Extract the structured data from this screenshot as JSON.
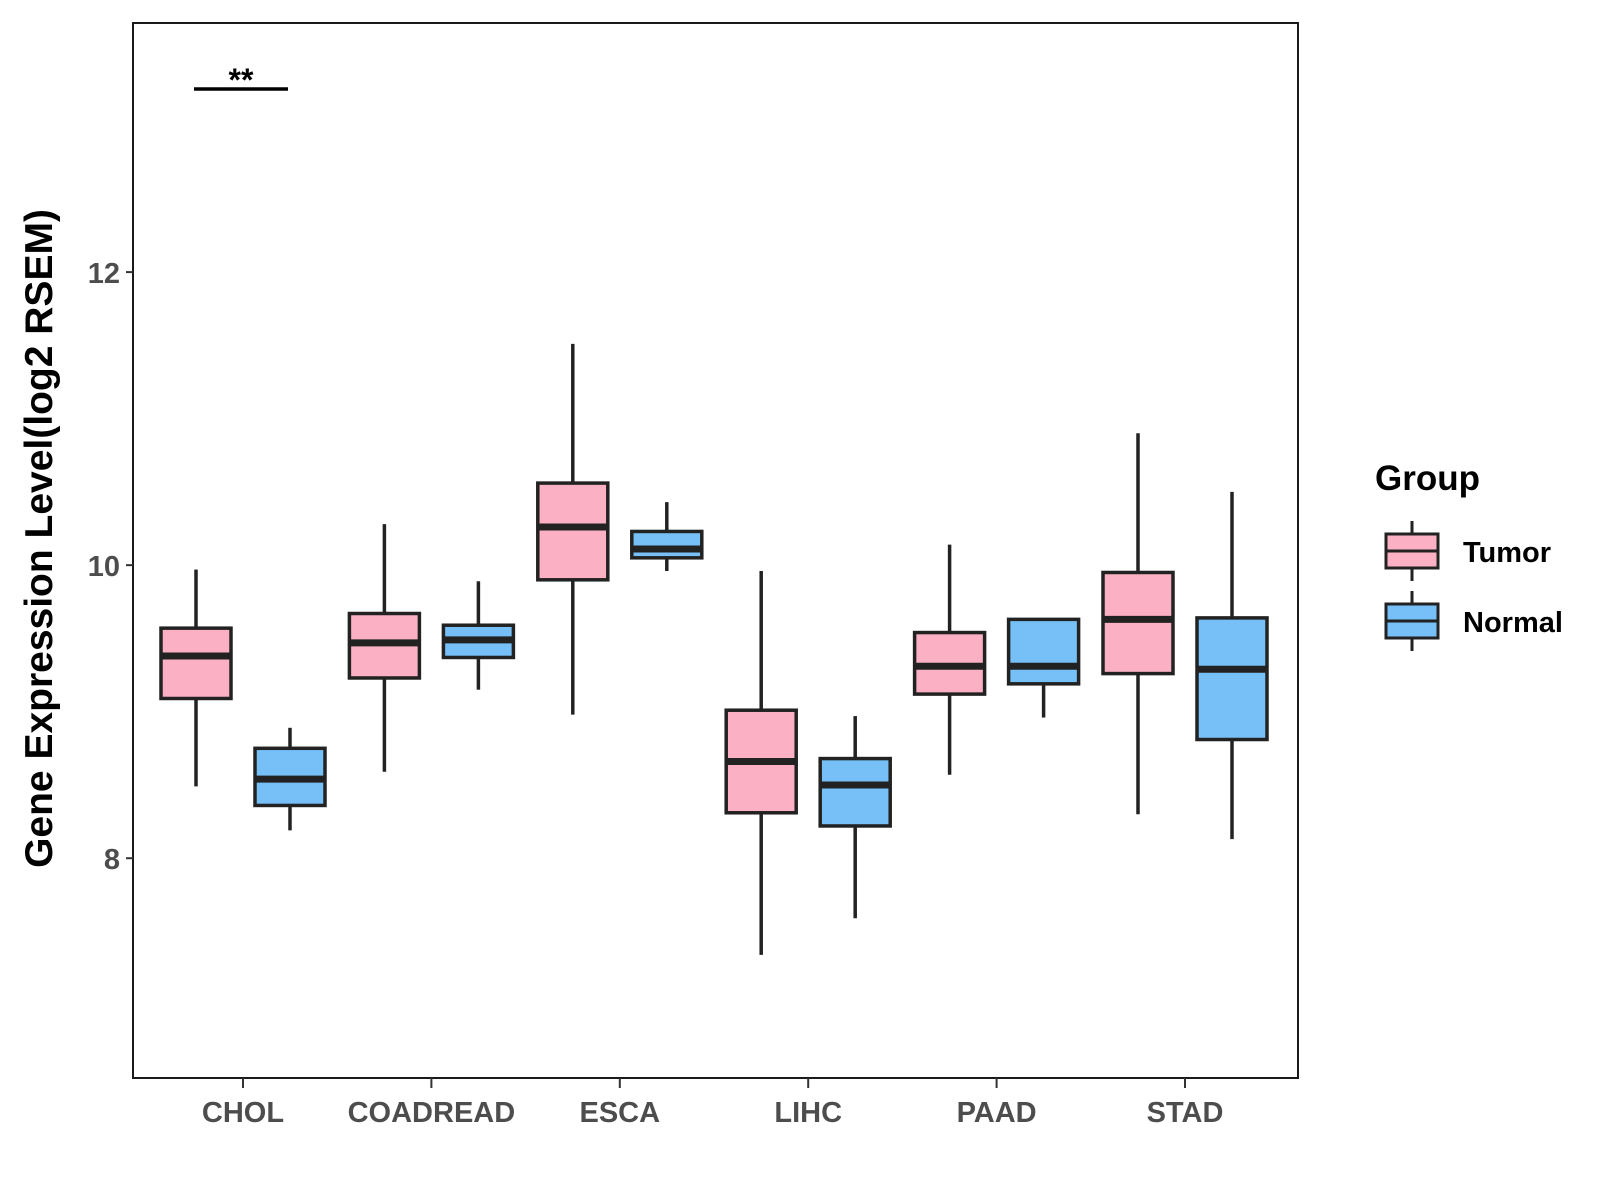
{
  "chart_data": {
    "type": "boxplot",
    "ylabel": "Gene Expression Level(log2 RSEM)",
    "xlabel": "",
    "ylim": [
      6.5,
      13.7
    ],
    "yticks": [
      8,
      10,
      12
    ],
    "categories": [
      "CHOL",
      "COADREAD",
      "ESCA",
      "LIHC",
      "PAAD",
      "STAD"
    ],
    "legend": {
      "title": "Group",
      "position": "right",
      "entries": [
        {
          "name": "Tumor",
          "color": "#fbb1c3"
        },
        {
          "name": "Normal",
          "color": "#76c0f7"
        }
      ]
    },
    "series": [
      {
        "name": "Tumor",
        "color": "#fbb1c3",
        "boxes": [
          {
            "min": 8.49,
            "q1": 9.09,
            "median": 9.38,
            "q3": 9.57,
            "max": 9.97
          },
          {
            "min": 8.59,
            "q1": 9.23,
            "median": 9.47,
            "q3": 9.67,
            "max": 10.28
          },
          {
            "min": 8.98,
            "q1": 9.9,
            "median": 10.26,
            "q3": 10.56,
            "max": 11.51
          },
          {
            "min": 7.34,
            "q1": 8.31,
            "median": 8.66,
            "q3": 9.01,
            "max": 9.96
          },
          {
            "min": 8.57,
            "q1": 9.12,
            "median": 9.31,
            "q3": 9.54,
            "max": 10.14
          },
          {
            "min": 8.3,
            "q1": 9.26,
            "median": 9.63,
            "q3": 9.95,
            "max": 10.9
          }
        ]
      },
      {
        "name": "Normal",
        "color": "#76c0f7",
        "boxes": [
          {
            "min": 8.19,
            "q1": 8.36,
            "median": 8.54,
            "q3": 8.75,
            "max": 8.89
          },
          {
            "min": 9.15,
            "q1": 9.37,
            "median": 9.49,
            "q3": 9.59,
            "max": 9.89
          },
          {
            "min": 9.96,
            "q1": 10.05,
            "median": 10.11,
            "q3": 10.23,
            "max": 10.43
          },
          {
            "min": 7.59,
            "q1": 8.22,
            "median": 8.5,
            "q3": 8.68,
            "max": 8.97
          },
          {
            "min": 8.96,
            "q1": 9.19,
            "median": 9.31,
            "q3": 9.63,
            "max": 9.63
          },
          {
            "min": 8.13,
            "q1": 8.81,
            "median": 9.29,
            "q3": 9.64,
            "max": 10.5
          }
        ]
      }
    ],
    "annotations": [
      {
        "category": "CHOL",
        "text": "**",
        "y": 13.25
      }
    ]
  }
}
